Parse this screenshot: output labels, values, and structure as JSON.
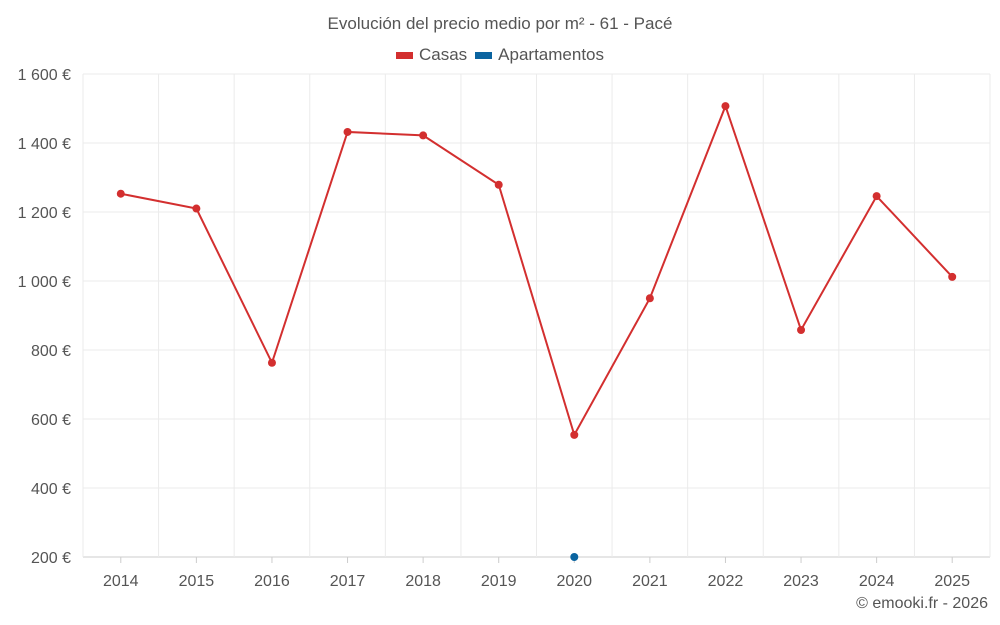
{
  "chart_data": {
    "type": "line",
    "title": "Evolución del precio medio por m² - 61 - Pacé",
    "categories": [
      "2014",
      "2015",
      "2016",
      "2017",
      "2018",
      "2019",
      "2020",
      "2021",
      "2022",
      "2023",
      "2024",
      "2025"
    ],
    "series": [
      {
        "name": "Casas",
        "color": "#d32f2f",
        "values": [
          1253,
          1210,
          763,
          1432,
          1422,
          1279,
          554,
          950,
          1507,
          858,
          1246,
          1012
        ]
      },
      {
        "name": "Apartamentos",
        "color": "#0b64a0",
        "values": [
          null,
          null,
          null,
          null,
          null,
          null,
          200,
          null,
          null,
          null,
          null,
          null
        ]
      }
    ],
    "y_ticks": [
      "200 €",
      "400 €",
      "600 €",
      "800 €",
      "1 000 €",
      "1 200 €",
      "1 400 €",
      "1 600 €"
    ],
    "y_tick_values": [
      200,
      400,
      600,
      800,
      1000,
      1200,
      1400,
      1600
    ],
    "ylim": [
      200,
      1600
    ],
    "grid": true,
    "legend_position": "top-center"
  },
  "credit": "© emooki.fr - 2026"
}
